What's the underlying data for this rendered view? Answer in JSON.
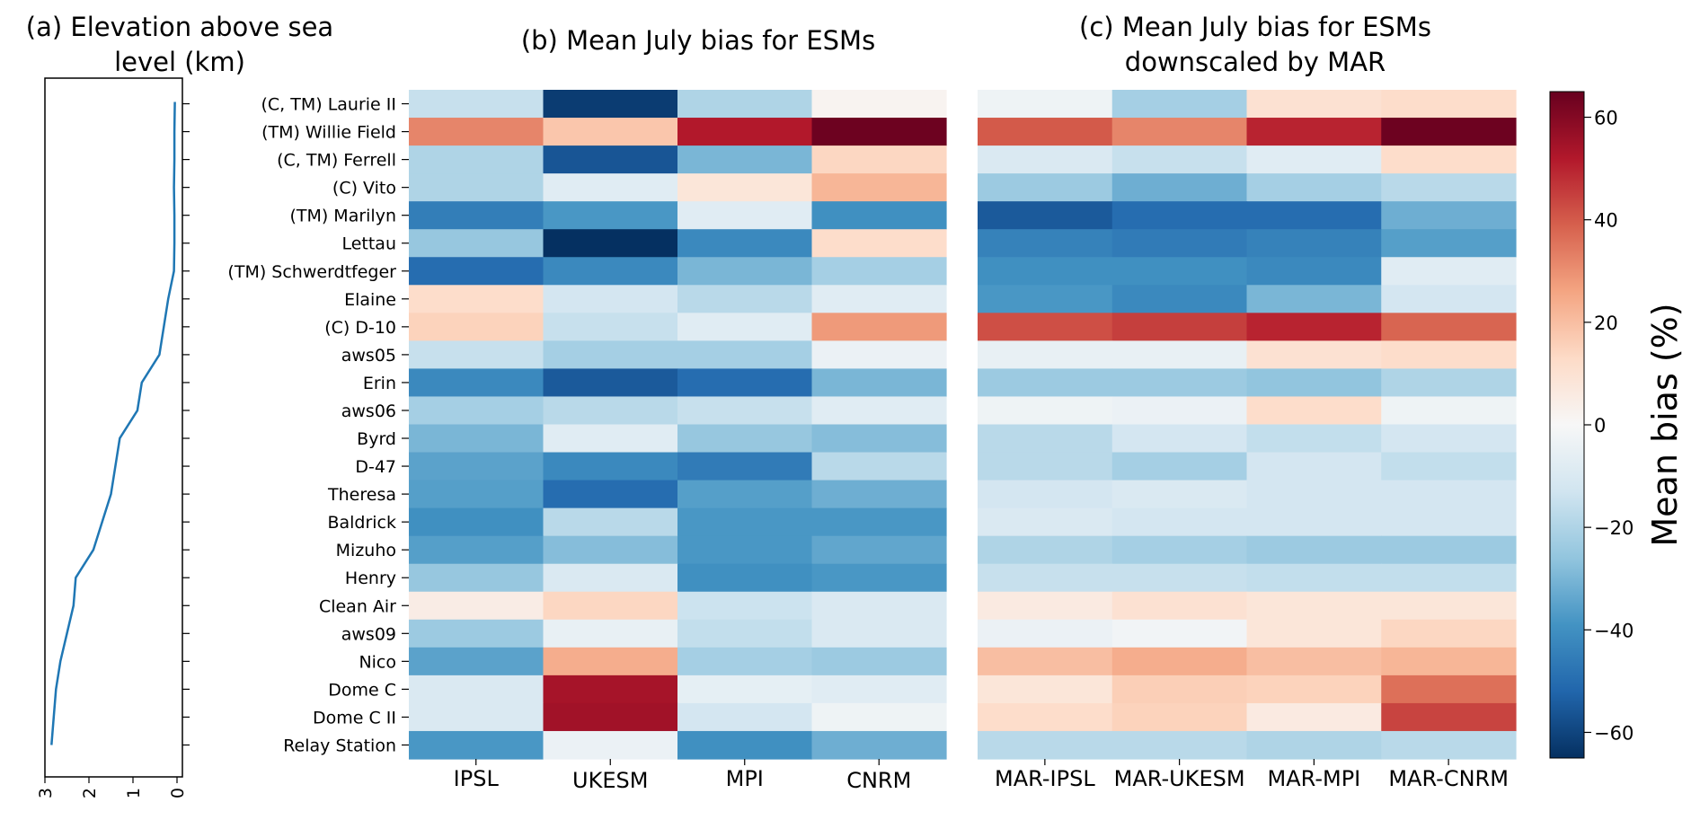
{
  "chart_data": [
    {
      "type": "line",
      "title_lines": [
        "(a) Elevation above sea",
        "level (km)"
      ],
      "x_ticks": [
        "3",
        "2",
        "1",
        "0"
      ],
      "x_tick_values": [
        3,
        2,
        1,
        0
      ],
      "xlim": [
        3,
        0
      ],
      "elevation_km": [
        0.05,
        0.06,
        0.06,
        0.07,
        0.06,
        0.06,
        0.07,
        0.2,
        0.3,
        0.4,
        0.8,
        0.9,
        1.3,
        1.4,
        1.5,
        1.7,
        1.9,
        2.3,
        2.35,
        2.5,
        2.65,
        2.75,
        2.8,
        2.85
      ],
      "line_color": "#1f77b4"
    },
    {
      "type": "heatmap",
      "title": "(b) Mean July bias for ESMs",
      "columns": [
        "IPSL",
        "UKESM",
        "MPI",
        "CNRM"
      ],
      "rows": [
        "(C, TM) Laurie II",
        "(TM) Willie Field",
        "(C, TM) Ferrell",
        "(C) Vito",
        "(TM) Marilyn",
        "Lettau",
        "(TM) Schwerdtfeger",
        "Elaine",
        "(C) D-10",
        "aws05",
        "Erin",
        "aws06",
        "Byrd",
        "D-47",
        "Theresa",
        "Baldrick",
        "Mizuho",
        "Henry",
        "Clean Air",
        "aws09",
        "Nico",
        "Dome C",
        "Dome C II",
        "Relay Station"
      ],
      "values": [
        [
          -15,
          -62,
          -20,
          2
        ],
        [
          32,
          18,
          52,
          64
        ],
        [
          -20,
          -56,
          -30,
          14
        ],
        [
          -20,
          -8,
          8,
          22
        ],
        [
          -45,
          -38,
          -8,
          -40
        ],
        [
          -25,
          -65,
          -42,
          12
        ],
        [
          -50,
          -42,
          -30,
          -22
        ],
        [
          12,
          -12,
          -18,
          -8
        ],
        [
          15,
          -15,
          -8,
          28
        ],
        [
          -15,
          -22,
          -22,
          -4
        ],
        [
          -42,
          -55,
          -50,
          -30
        ],
        [
          -22,
          -18,
          -15,
          -8
        ],
        [
          -30,
          -8,
          -25,
          -28
        ],
        [
          -35,
          -42,
          -46,
          -18
        ],
        [
          -36,
          -50,
          -36,
          -32
        ],
        [
          -40,
          -18,
          -38,
          -38
        ],
        [
          -36,
          -28,
          -38,
          -34
        ],
        [
          -25,
          -10,
          -40,
          -38
        ],
        [
          5,
          14,
          -14,
          -10
        ],
        [
          -24,
          -5,
          -16,
          -10
        ],
        [
          -35,
          24,
          -22,
          -24
        ],
        [
          -10,
          54,
          -6,
          -8
        ],
        [
          -10,
          55,
          -12,
          -3
        ],
        [
          -38,
          -4,
          -40,
          -32
        ]
      ]
    },
    {
      "type": "heatmap",
      "title_lines": [
        "(c) Mean July bias for ESMs",
        "downscaled by MAR"
      ],
      "columns": [
        "MAR-IPSL",
        "MAR-UKESM",
        "MAR-MPI",
        "MAR-CNRM"
      ],
      "values": [
        [
          -3,
          -22,
          10,
          12
        ],
        [
          40,
          32,
          50,
          64
        ],
        [
          -10,
          -15,
          -8,
          12
        ],
        [
          -24,
          -32,
          -22,
          -18
        ],
        [
          -55,
          -50,
          -50,
          -32
        ],
        [
          -44,
          -46,
          -44,
          -36
        ],
        [
          -40,
          -40,
          -42,
          -8
        ],
        [
          -38,
          -42,
          -30,
          -12
        ],
        [
          42,
          45,
          50,
          38
        ],
        [
          -5,
          -5,
          10,
          12
        ],
        [
          -24,
          -24,
          -26,
          -20
        ],
        [
          -3,
          -4,
          12,
          -3
        ],
        [
          -18,
          -12,
          -16,
          -12
        ],
        [
          -18,
          -22,
          -12,
          -16
        ],
        [
          -12,
          -10,
          -12,
          -12
        ],
        [
          -10,
          -12,
          -12,
          -12
        ],
        [
          -20,
          -22,
          -24,
          -24
        ],
        [
          -15,
          -15,
          -16,
          -16
        ],
        [
          6,
          10,
          8,
          8
        ],
        [
          -4,
          -2,
          8,
          14
        ],
        [
          20,
          24,
          20,
          22
        ],
        [
          8,
          16,
          15,
          36
        ],
        [
          12,
          15,
          6,
          44
        ],
        [
          -18,
          -18,
          -20,
          -18
        ]
      ]
    },
    {
      "type": "colorbar",
      "label": "Mean bias (%)",
      "range": [
        -65,
        65
      ],
      "ticks": [
        60,
        40,
        20,
        0,
        -20,
        -40,
        -60
      ],
      "tick_labels": [
        "60",
        "40",
        "20",
        "0",
        "−20",
        "−40",
        "−60"
      ]
    }
  ]
}
